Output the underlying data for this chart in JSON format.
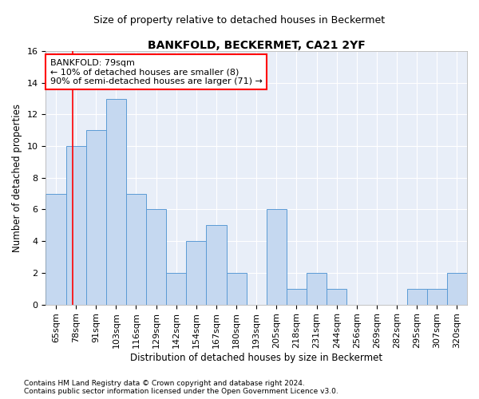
{
  "title": "BANKFOLD, BECKERMET, CA21 2YF",
  "subtitle": "Size of property relative to detached houses in Beckermet",
  "xlabel": "Distribution of detached houses by size in Beckermet",
  "ylabel": "Number of detached properties",
  "categories": [
    "65sqm",
    "78sqm",
    "91sqm",
    "103sqm",
    "116sqm",
    "129sqm",
    "142sqm",
    "154sqm",
    "167sqm",
    "180sqm",
    "193sqm",
    "205sqm",
    "218sqm",
    "231sqm",
    "244sqm",
    "256sqm",
    "269sqm",
    "282sqm",
    "295sqm",
    "307sqm",
    "320sqm"
  ],
  "values": [
    7,
    10,
    11,
    13,
    7,
    6,
    2,
    4,
    5,
    2,
    0,
    6,
    1,
    2,
    1,
    0,
    0,
    0,
    1,
    1,
    2
  ],
  "bar_color": "#c5d8f0",
  "bar_edge_color": "#5b9bd5",
  "annotation_text_line1": "BANKFOLD: 79sqm",
  "annotation_text_line2": "← 10% of detached houses are smaller (8)",
  "annotation_text_line3": "90% of semi-detached houses are larger (71) →",
  "annotation_box_color": "white",
  "annotation_box_edge": "red",
  "vline_color": "red",
  "vline_x_index": 0.85,
  "ylim": [
    0,
    16
  ],
  "yticks": [
    0,
    2,
    4,
    6,
    8,
    10,
    12,
    14,
    16
  ],
  "background_color": "#e8eef8",
  "grid_color": "white",
  "footer_line1": "Contains HM Land Registry data © Crown copyright and database right 2024.",
  "footer_line2": "Contains public sector information licensed under the Open Government Licence v3.0.",
  "title_fontsize": 10,
  "subtitle_fontsize": 9,
  "xlabel_fontsize": 8.5,
  "ylabel_fontsize": 8.5,
  "tick_fontsize": 8,
  "annotation_fontsize": 8,
  "footer_fontsize": 6.5
}
